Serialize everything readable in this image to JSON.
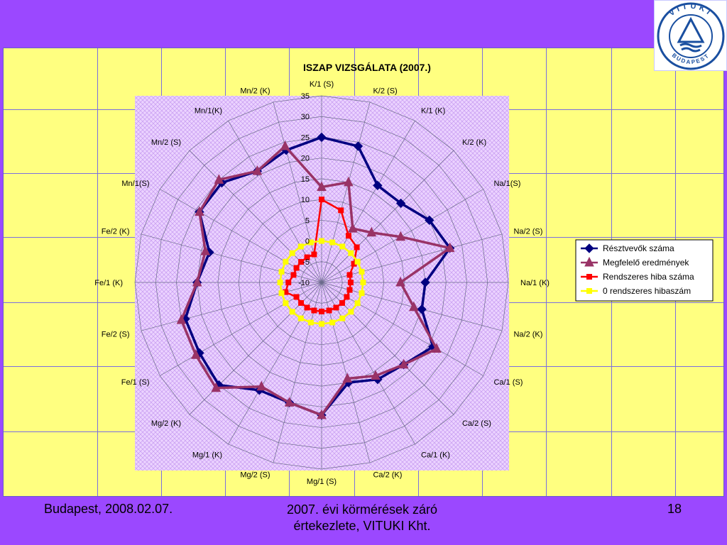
{
  "footer": {
    "date": "Budapest, 2008.02.07.",
    "title_line1": "2007. évi körmérések záró",
    "title_line2": "értekezlete, VITUKI Kht.",
    "page_number": "18"
  },
  "logo": {
    "top_text": "VITUKI",
    "bottom_text": "BUDAPEST"
  },
  "chart_data": {
    "type": "radar",
    "title": "ISZAP VIZSGÁLATA (2007.)",
    "categories": [
      "K/1 (S)",
      "K/2 (S)",
      "K/1 (K)",
      "K/2 (K)",
      "Na/1(S)",
      "Na/2 (S)",
      "Na/1 (K)",
      "Na/2 (K)",
      "Ca/1 (S)",
      "Ca/2 (S)",
      "Ca/1 (K)",
      "Ca/2 (K)",
      "Mg/1 (S)",
      "Mg/2 (S)",
      "Mg/1 (K)",
      "Mg/2 (K)",
      "Fe/1 (S)",
      "Fe/2 (S)",
      "Fe/1 (K)",
      "Fe/2 (K)",
      "Mn/1(S)",
      "Mn/2 (S)",
      "Mn/1(K)",
      "Mn/2 (K)"
    ],
    "r_ticks": [
      "-10",
      "-5",
      "0",
      "5",
      "10",
      "15",
      "20",
      "25",
      "30",
      "35"
    ],
    "rlim": [
      -10,
      35
    ],
    "grid": true,
    "legend_position": "right",
    "series": [
      {
        "name": "Résztvevők száma",
        "color": "#000080",
        "marker": "diamond",
        "values": [
          25,
          24,
          17,
          17,
          20,
          22,
          15,
          15,
          21,
          18,
          17,
          15,
          22,
          20,
          20,
          25,
          24,
          24,
          20,
          18,
          24,
          24,
          21,
          23
        ]
      },
      {
        "name": "Megfelelő eredmények",
        "color": "#993366",
        "marker": "triangle",
        "values": [
          13,
          15,
          5,
          7,
          12,
          22,
          9,
          13,
          22,
          18,
          16,
          14,
          22,
          20,
          19,
          26,
          25,
          25,
          20,
          19,
          24,
          25,
          21,
          24
        ]
      },
      {
        "name": "Rendszeres hiba száma",
        "color": "#ff0000",
        "marker": "square",
        "values": [
          10,
          8,
          3,
          2,
          -1,
          -3,
          -3,
          -3,
          -3,
          -3,
          -3,
          -3,
          -3,
          -3,
          -3,
          -3,
          -3,
          -1,
          -2,
          -3,
          -3,
          -3,
          -3,
          -3
        ]
      },
      {
        "name": "0 rendszeres hibaszám",
        "color": "#ffff00",
        "marker": "square",
        "values": [
          0,
          0,
          0,
          0,
          0,
          0,
          0,
          0,
          0,
          0,
          0,
          0,
          0,
          0,
          0,
          0,
          0,
          0,
          0,
          0,
          0,
          0,
          0,
          0
        ]
      }
    ]
  }
}
